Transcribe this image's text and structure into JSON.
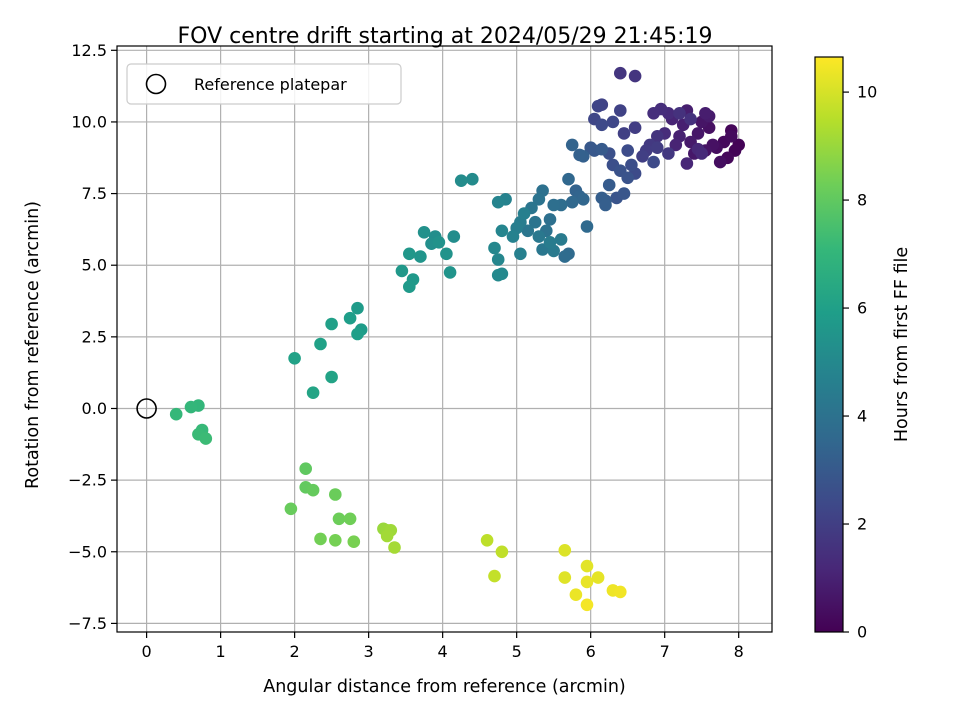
{
  "chart_data": {
    "type": "scatter",
    "title": "FOV centre drift starting at 2024/05/29 21:45:19",
    "xlabel": "Angular distance from reference (arcmin)",
    "ylabel": "Rotation from reference (arcmin)",
    "xlim": [
      -0.4,
      8.45
    ],
    "ylim": [
      -7.8,
      12.65
    ],
    "x_ticks": [
      0,
      1,
      2,
      3,
      4,
      5,
      6,
      7,
      8
    ],
    "x_tick_labels": [
      "0",
      "1",
      "2",
      "3",
      "4",
      "5",
      "6",
      "7",
      "8"
    ],
    "y_ticks": [
      -7.5,
      -5.0,
      -2.5,
      0.0,
      2.5,
      5.0,
      7.5,
      10.0,
      12.5
    ],
    "y_tick_labels": [
      "−7.5",
      "−5.0",
      "−2.5",
      "0.0",
      "2.5",
      "5.0",
      "7.5",
      "10.0",
      "12.5"
    ],
    "grid": true,
    "legend": {
      "position": "top-left",
      "entries": [
        {
          "label": "Reference platepar",
          "marker": "open-circle"
        }
      ]
    },
    "reference_point": {
      "x": 0,
      "y": 0
    },
    "colorbar": {
      "label": "Hours from first FF file",
      "colormap": "viridis",
      "range": [
        0,
        10.65
      ],
      "ticks": [
        0,
        2,
        4,
        6,
        8,
        10
      ],
      "tick_labels": [
        "0",
        "2",
        "4",
        "6",
        "8",
        "10"
      ]
    },
    "colormap_stops": [
      "#440154",
      "#482878",
      "#3e4989",
      "#31688e",
      "#26828e",
      "#1f9e89",
      "#35b779",
      "#6ece58",
      "#b5de2b",
      "#fde725"
    ],
    "series": [
      {
        "points": [
          [
            8.0,
            9.2,
            0.05
          ],
          [
            7.95,
            9.0,
            0.1
          ],
          [
            7.9,
            9.7,
            0.15
          ],
          [
            7.85,
            8.75,
            0.2
          ],
          [
            7.8,
            9.3,
            0.25
          ],
          [
            7.9,
            9.5,
            0.3
          ],
          [
            7.7,
            9.1,
            0.35
          ],
          [
            7.75,
            8.6,
            0.4
          ],
          [
            7.6,
            9.8,
            0.45
          ],
          [
            7.65,
            9.2,
            0.5
          ],
          [
            7.55,
            9.0,
            0.55
          ],
          [
            7.5,
            10.0,
            0.6
          ],
          [
            7.45,
            9.6,
            0.65
          ],
          [
            7.4,
            8.9,
            0.7
          ],
          [
            7.35,
            9.3,
            0.75
          ],
          [
            7.6,
            10.2,
            0.8
          ],
          [
            7.55,
            10.3,
            0.85
          ],
          [
            7.3,
            10.4,
            0.9
          ],
          [
            7.25,
            9.9,
            0.95
          ],
          [
            7.2,
            9.5,
            1.0
          ],
          [
            7.15,
            9.2,
            1.05
          ],
          [
            7.1,
            10.1,
            1.1
          ],
          [
            7.3,
            8.55,
            1.15
          ],
          [
            7.45,
            9.05,
            1.2
          ],
          [
            7.5,
            8.9,
            1.25
          ],
          [
            7.05,
            10.3,
            1.3
          ],
          [
            7.0,
            9.6,
            1.35
          ],
          [
            6.95,
            10.45,
            1.4
          ],
          [
            6.85,
            10.3,
            1.45
          ],
          [
            7.35,
            10.1,
            1.5
          ],
          [
            7.2,
            10.3,
            1.55
          ],
          [
            6.9,
            9.5,
            1.6
          ],
          [
            6.6,
            11.6,
            1.65
          ],
          [
            6.4,
            11.7,
            1.7
          ],
          [
            7.05,
            8.9,
            1.75
          ],
          [
            6.8,
            9.2,
            1.8
          ],
          [
            6.75,
            9.0,
            1.85
          ],
          [
            6.9,
            9.1,
            1.9
          ],
          [
            6.6,
            9.8,
            1.95
          ],
          [
            6.7,
            8.8,
            2.0
          ],
          [
            6.45,
            9.6,
            2.05
          ],
          [
            6.4,
            10.4,
            2.1
          ],
          [
            6.15,
            10.6,
            2.15
          ],
          [
            6.1,
            10.55,
            2.2
          ],
          [
            6.05,
            10.1,
            2.25
          ],
          [
            6.3,
            10.0,
            2.3
          ],
          [
            6.15,
            9.9,
            2.35
          ],
          [
            6.85,
            8.6,
            2.4
          ],
          [
            6.6,
            8.2,
            2.45
          ],
          [
            6.5,
            9.0,
            2.5
          ],
          [
            6.55,
            8.5,
            2.55
          ],
          [
            6.3,
            8.5,
            2.6
          ],
          [
            6.25,
            8.9,
            2.65
          ],
          [
            6.4,
            8.3,
            2.7
          ],
          [
            6.5,
            8.05,
            2.75
          ],
          [
            6.35,
            7.35,
            2.8
          ],
          [
            6.45,
            7.5,
            2.85
          ],
          [
            6.05,
            9.0,
            2.9
          ],
          [
            6.0,
            9.1,
            2.95
          ],
          [
            6.15,
            9.05,
            3.0
          ],
          [
            6.25,
            7.8,
            3.05
          ],
          [
            6.2,
            7.25,
            3.1
          ],
          [
            6.15,
            7.35,
            3.15
          ],
          [
            6.2,
            7.1,
            3.2
          ],
          [
            5.9,
            8.8,
            3.25
          ],
          [
            5.85,
            8.85,
            3.3
          ],
          [
            5.8,
            7.6,
            3.35
          ],
          [
            5.75,
            9.2,
            3.4
          ],
          [
            5.85,
            7.4,
            3.45
          ],
          [
            5.9,
            7.3,
            3.5
          ],
          [
            5.7,
            8.0,
            3.55
          ],
          [
            5.75,
            7.2,
            3.6
          ],
          [
            5.95,
            6.35,
            3.65
          ],
          [
            5.7,
            5.4,
            3.7
          ],
          [
            5.65,
            5.3,
            3.75
          ],
          [
            5.6,
            7.1,
            3.8
          ],
          [
            5.5,
            7.1,
            3.85
          ],
          [
            5.45,
            6.6,
            3.9
          ],
          [
            5.35,
            7.6,
            3.95
          ],
          [
            5.4,
            6.2,
            4.0
          ],
          [
            5.3,
            7.3,
            4.05
          ],
          [
            5.25,
            6.5,
            4.1
          ],
          [
            5.2,
            7.0,
            4.15
          ],
          [
            5.15,
            6.2,
            4.2
          ],
          [
            5.35,
            5.55,
            4.25
          ],
          [
            5.3,
            6.0,
            4.3
          ],
          [
            5.5,
            5.5,
            4.35
          ],
          [
            5.6,
            5.9,
            4.4
          ],
          [
            5.45,
            5.8,
            4.45
          ],
          [
            5.05,
            6.5,
            4.5
          ],
          [
            5.0,
            6.3,
            4.55
          ],
          [
            5.1,
            6.8,
            4.6
          ],
          [
            5.05,
            5.4,
            4.65
          ],
          [
            4.95,
            6.0,
            4.7
          ],
          [
            4.85,
            7.3,
            4.75
          ],
          [
            4.75,
            7.2,
            4.8
          ],
          [
            4.8,
            6.2,
            4.85
          ],
          [
            4.75,
            5.2,
            4.9
          ],
          [
            4.7,
            5.6,
            4.95
          ],
          [
            4.8,
            4.7,
            5.0
          ],
          [
            4.75,
            4.65,
            5.05
          ],
          [
            4.4,
            8.0,
            5.1
          ],
          [
            4.25,
            7.95,
            5.15
          ],
          [
            4.15,
            6.0,
            5.2
          ],
          [
            3.9,
            6.0,
            5.25
          ],
          [
            3.85,
            5.75,
            5.3
          ],
          [
            3.75,
            6.15,
            5.35
          ],
          [
            3.95,
            5.8,
            5.4
          ],
          [
            4.05,
            5.4,
            5.45
          ],
          [
            4.1,
            4.75,
            5.5
          ],
          [
            3.7,
            5.3,
            5.55
          ],
          [
            3.55,
            5.4,
            5.6
          ],
          [
            3.45,
            4.8,
            5.65
          ],
          [
            3.6,
            4.5,
            5.7
          ],
          [
            3.55,
            4.25,
            5.75
          ],
          [
            2.85,
            3.5,
            5.8
          ],
          [
            2.9,
            2.75,
            5.85
          ],
          [
            2.75,
            3.15,
            5.9
          ],
          [
            2.85,
            2.6,
            5.95
          ],
          [
            2.5,
            2.95,
            6.0
          ],
          [
            2.35,
            2.25,
            6.05
          ],
          [
            2.0,
            1.75,
            6.1
          ],
          [
            2.5,
            1.1,
            6.15
          ],
          [
            2.25,
            0.55,
            6.2
          ],
          [
            0.7,
            0.1,
            7.0
          ],
          [
            0.6,
            0.05,
            7.05
          ],
          [
            0.4,
            -0.2,
            7.1
          ],
          [
            0.75,
            -0.75,
            7.15
          ],
          [
            0.7,
            -0.9,
            7.2
          ],
          [
            0.8,
            -1.05,
            7.25
          ],
          [
            2.15,
            -2.1,
            8.0
          ],
          [
            2.15,
            -2.75,
            8.05
          ],
          [
            2.25,
            -2.85,
            8.1
          ],
          [
            1.95,
            -3.5,
            8.15
          ],
          [
            2.55,
            -3.0,
            8.2
          ],
          [
            2.6,
            -3.85,
            8.25
          ],
          [
            2.75,
            -3.85,
            8.3
          ],
          [
            2.35,
            -4.55,
            8.35
          ],
          [
            2.55,
            -4.6,
            8.4
          ],
          [
            2.8,
            -4.65,
            8.45
          ],
          [
            3.2,
            -4.2,
            9.0
          ],
          [
            3.25,
            -4.25,
            9.05
          ],
          [
            3.3,
            -4.25,
            9.1
          ],
          [
            3.25,
            -4.45,
            9.15
          ],
          [
            3.35,
            -4.85,
            9.2
          ],
          [
            4.6,
            -4.6,
            9.6
          ],
          [
            4.8,
            -5.0,
            9.65
          ],
          [
            4.7,
            -5.85,
            9.7
          ],
          [
            5.65,
            -4.95,
            10.1
          ],
          [
            5.65,
            -5.9,
            10.15
          ],
          [
            5.95,
            -5.5,
            10.2
          ],
          [
            6.1,
            -5.9,
            10.25
          ],
          [
            5.95,
            -6.05,
            10.3
          ],
          [
            5.8,
            -6.5,
            10.35
          ],
          [
            6.3,
            -6.35,
            10.4
          ],
          [
            6.4,
            -6.4,
            10.45
          ],
          [
            5.95,
            -6.85,
            10.5
          ]
        ]
      }
    ]
  }
}
